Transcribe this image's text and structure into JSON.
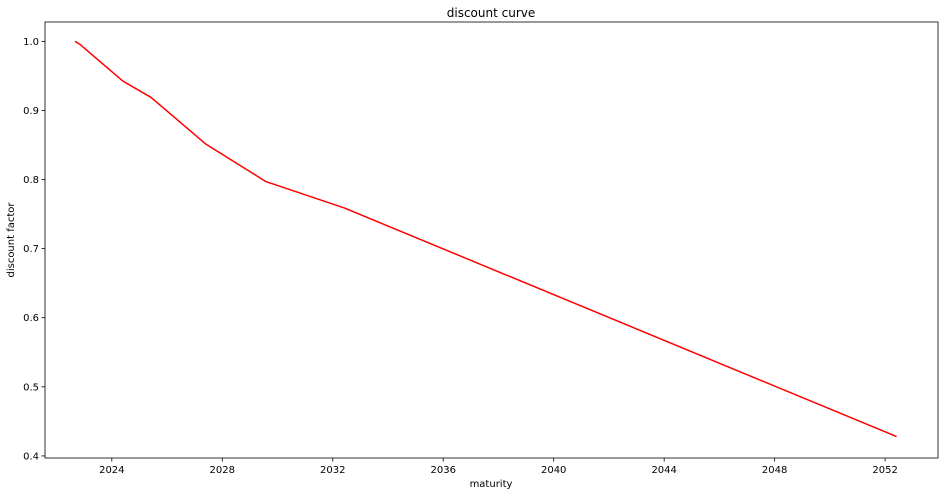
{
  "chart_data": {
    "type": "line",
    "title": "discount curve",
    "xlabel": "maturity",
    "ylabel": "discount factor",
    "x_ticks": [
      "2024",
      "2028",
      "2032",
      "2036",
      "2040",
      "2044",
      "2048",
      "2052"
    ],
    "y_ticks": [
      "0.4",
      "0.5",
      "0.6",
      "0.7",
      "0.8",
      "0.9",
      "1.0"
    ],
    "xlim": [
      "2021-08-01",
      "2053-12-01"
    ],
    "ylim": [
      0.397,
      1.028
    ],
    "grid": false,
    "series": [
      {
        "color": "#ff0000",
        "points": [
          {
            "x": "2022-09-01",
            "y": 1.0
          },
          {
            "x": "2022-11-01",
            "y": 0.996
          },
          {
            "x": "2024-06-01",
            "y": 0.942
          },
          {
            "x": "2025-06-01",
            "y": 0.919
          },
          {
            "x": "2027-06-01",
            "y": 0.851
          },
          {
            "x": "2029-08-01",
            "y": 0.797
          },
          {
            "x": "2032-06-01",
            "y": 0.759
          },
          {
            "x": "2052-06-01",
            "y": 0.428
          }
        ]
      }
    ]
  }
}
